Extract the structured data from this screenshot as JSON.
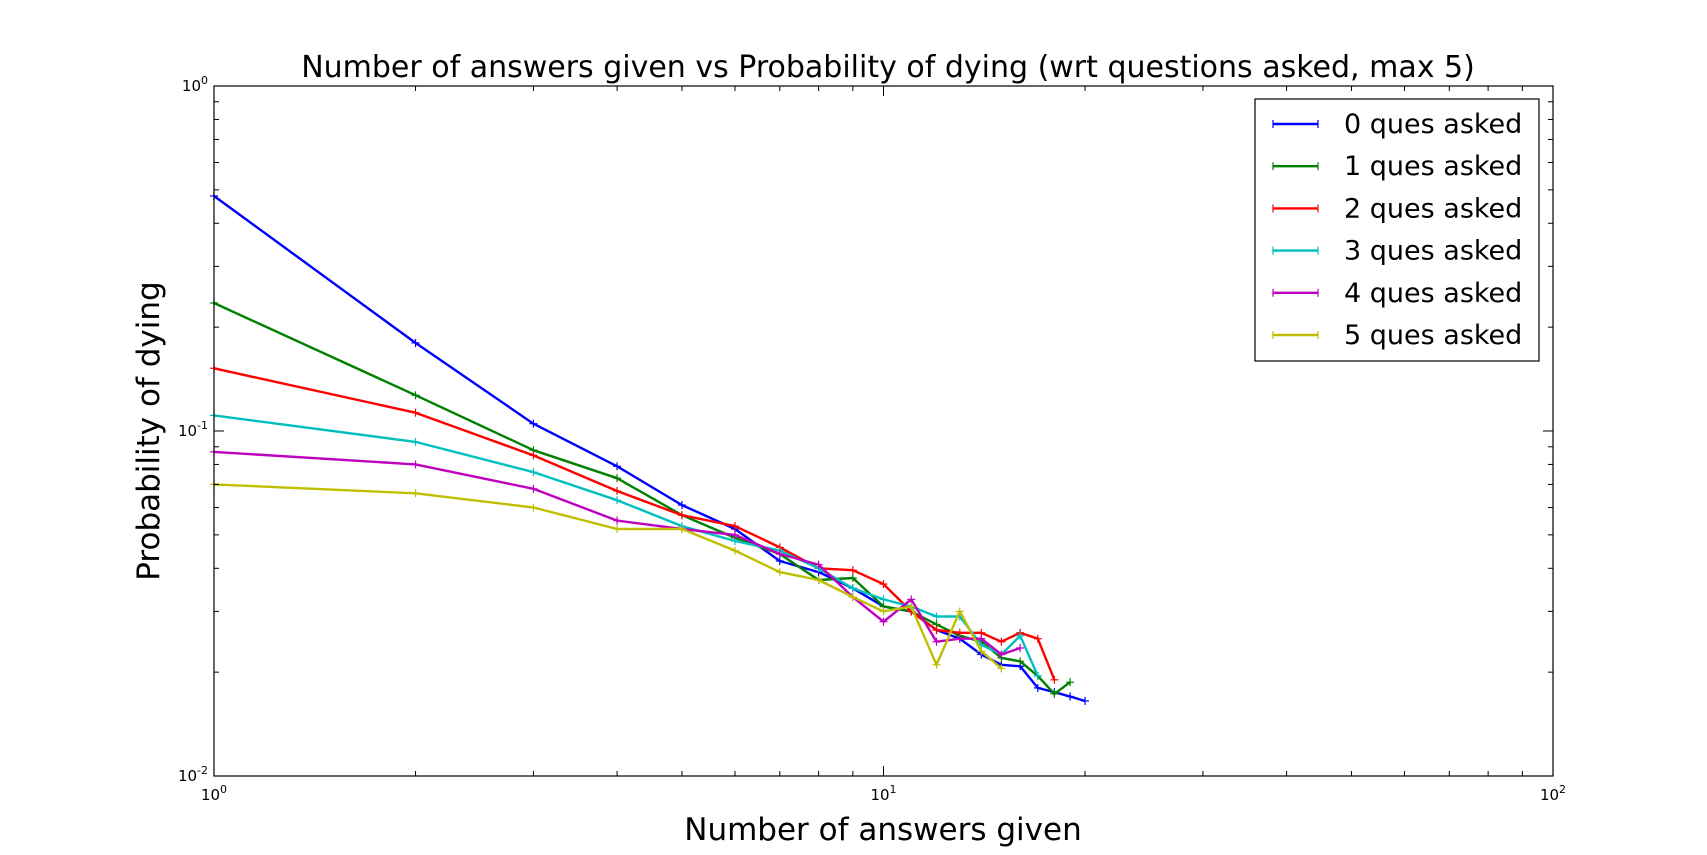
{
  "chart_data": {
    "type": "line",
    "title": "Number of answers given vs Probability of dying (wrt questions asked, max 5)",
    "xlabel": "Number of answers given",
    "ylabel": "Probability of dying",
    "xscale": "log",
    "yscale": "log",
    "xlim": [
      1,
      100
    ],
    "ylim": [
      0.01,
      1
    ],
    "x_ticks": [
      {
        "base": "10",
        "exp": "0",
        "value": 1
      },
      {
        "base": "10",
        "exp": "1",
        "value": 10
      },
      {
        "base": "10",
        "exp": "2",
        "value": 100
      }
    ],
    "y_ticks": [
      {
        "base": "10",
        "exp": "0",
        "value": 1
      },
      {
        "base": "10",
        "exp": "-1",
        "value": 0.1
      },
      {
        "base": "10",
        "exp": "-2",
        "value": 0.01
      }
    ],
    "grid": false,
    "legend_position": "top-right",
    "series": [
      {
        "name": "0 ques asked",
        "color": "#0000ff",
        "x": [
          1,
          2,
          3,
          4,
          5,
          6,
          7,
          8,
          9,
          10,
          11,
          12,
          13,
          14,
          15,
          16,
          17,
          18,
          19,
          20
        ],
        "y": [
          0.48,
          0.18,
          0.105,
          0.079,
          0.061,
          0.052,
          0.042,
          0.039,
          0.035,
          0.031,
          0.03,
          0.0265,
          0.025,
          0.0225,
          0.021,
          0.0208,
          0.018,
          0.0175,
          0.017,
          0.0165
        ]
      },
      {
        "name": "1 ques asked",
        "color": "#008000",
        "x": [
          1,
          2,
          3,
          4,
          5,
          6,
          7,
          8,
          9,
          10,
          11,
          12,
          13,
          14,
          15,
          16,
          17,
          18,
          19
        ],
        "y": [
          0.235,
          0.127,
          0.088,
          0.073,
          0.057,
          0.049,
          0.044,
          0.037,
          0.0375,
          0.031,
          0.03,
          0.0275,
          0.0255,
          0.0245,
          0.022,
          0.0215,
          0.0195,
          0.0173,
          0.0187
        ]
      },
      {
        "name": "2 ques asked",
        "color": "#ff0000",
        "x": [
          1,
          2,
          3,
          4,
          5,
          6,
          7,
          8,
          9,
          10,
          11,
          12,
          13,
          14,
          15,
          16,
          17,
          18
        ],
        "y": [
          0.152,
          0.113,
          0.085,
          0.067,
          0.057,
          0.053,
          0.046,
          0.04,
          0.0395,
          0.036,
          0.03,
          0.0265,
          0.026,
          0.026,
          0.0245,
          0.026,
          0.025,
          0.019
        ]
      },
      {
        "name": "3 ques asked",
        "color": "#00bfbf",
        "x": [
          1,
          2,
          3,
          4,
          5,
          6,
          7,
          8,
          9,
          10,
          11,
          12,
          13,
          14,
          15,
          16,
          17
        ],
        "y": [
          0.111,
          0.093,
          0.076,
          0.063,
          0.053,
          0.048,
          0.045,
          0.04,
          0.035,
          0.0325,
          0.031,
          0.029,
          0.029,
          0.024,
          0.0225,
          0.0255,
          0.0195
        ]
      },
      {
        "name": "4 ques asked",
        "color": "#bf00bf",
        "x": [
          1,
          2,
          3,
          4,
          5,
          6,
          7,
          8,
          9,
          10,
          11,
          12,
          13,
          14,
          15,
          16
        ],
        "y": [
          0.087,
          0.08,
          0.068,
          0.055,
          0.052,
          0.05,
          0.044,
          0.041,
          0.033,
          0.028,
          0.0325,
          0.0245,
          0.025,
          0.025,
          0.0225,
          0.0235
        ]
      },
      {
        "name": "5 ques asked",
        "color": "#bfbf00",
        "x": [
          1,
          2,
          3,
          4,
          5,
          6,
          7,
          8,
          9,
          10,
          11,
          12,
          13,
          14,
          15
        ],
        "y": [
          0.07,
          0.066,
          0.06,
          0.052,
          0.052,
          0.045,
          0.039,
          0.037,
          0.033,
          0.03,
          0.031,
          0.021,
          0.03,
          0.023,
          0.0205
        ]
      }
    ]
  }
}
